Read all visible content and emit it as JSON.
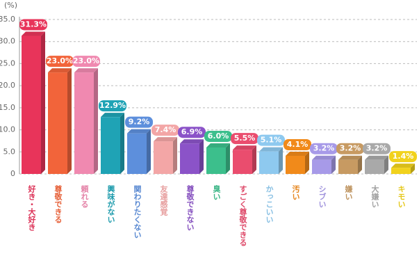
{
  "chart_data": {
    "type": "bar",
    "y_label": "(%)",
    "categories": [
      "好き・大好き",
      "尊敬できる",
      "頼れる",
      "興味がない",
      "関わりたくない",
      "友達感覚",
      "尊敬できない",
      "臭い",
      "すごく尊敬できる",
      "かっこいい",
      "汚い",
      "シブい",
      "嫌い",
      "大嫌い",
      "キモい"
    ],
    "values": [
      31.3,
      23.0,
      23.0,
      12.9,
      9.2,
      7.4,
      6.9,
      6.0,
      5.5,
      5.1,
      4.1,
      3.2,
      3.2,
      3.2,
      1.4
    ],
    "value_labels": [
      "31.3%",
      "23.0%",
      "23.0%",
      "12.9%",
      "9.2%",
      "7.4%",
      "6.9%",
      "6.0%",
      "5.5%",
      "5.1%",
      "4.1%",
      "3.2%",
      "3.2%",
      "3.2%",
      "1.4%"
    ],
    "colors": [
      "#e8345a",
      "#f2643a",
      "#f089b0",
      "#1fa3b5",
      "#5d8fdc",
      "#f3a6a6",
      "#8b53c8",
      "#3cbf8c",
      "#ea4d6e",
      "#8ec9ef",
      "#f18a1a",
      "#a79ae8",
      "#c79a62",
      "#a9a9a9",
      "#f1d21d"
    ],
    "ylim": [
      0,
      35
    ],
    "yticks": [
      0,
      {
        "value": 5,
        "label": "5.0"
      },
      {
        "value": 10,
        "label": "10.0"
      },
      {
        "value": 15,
        "label": "15.0"
      },
      {
        "value": 20,
        "label": "20.0"
      },
      {
        "value": 25,
        "label": "25.0"
      },
      {
        "value": 30,
        "label": "30.0"
      },
      {
        "value": 35,
        "label": "35.0"
      }
    ],
    "grid": true
  }
}
